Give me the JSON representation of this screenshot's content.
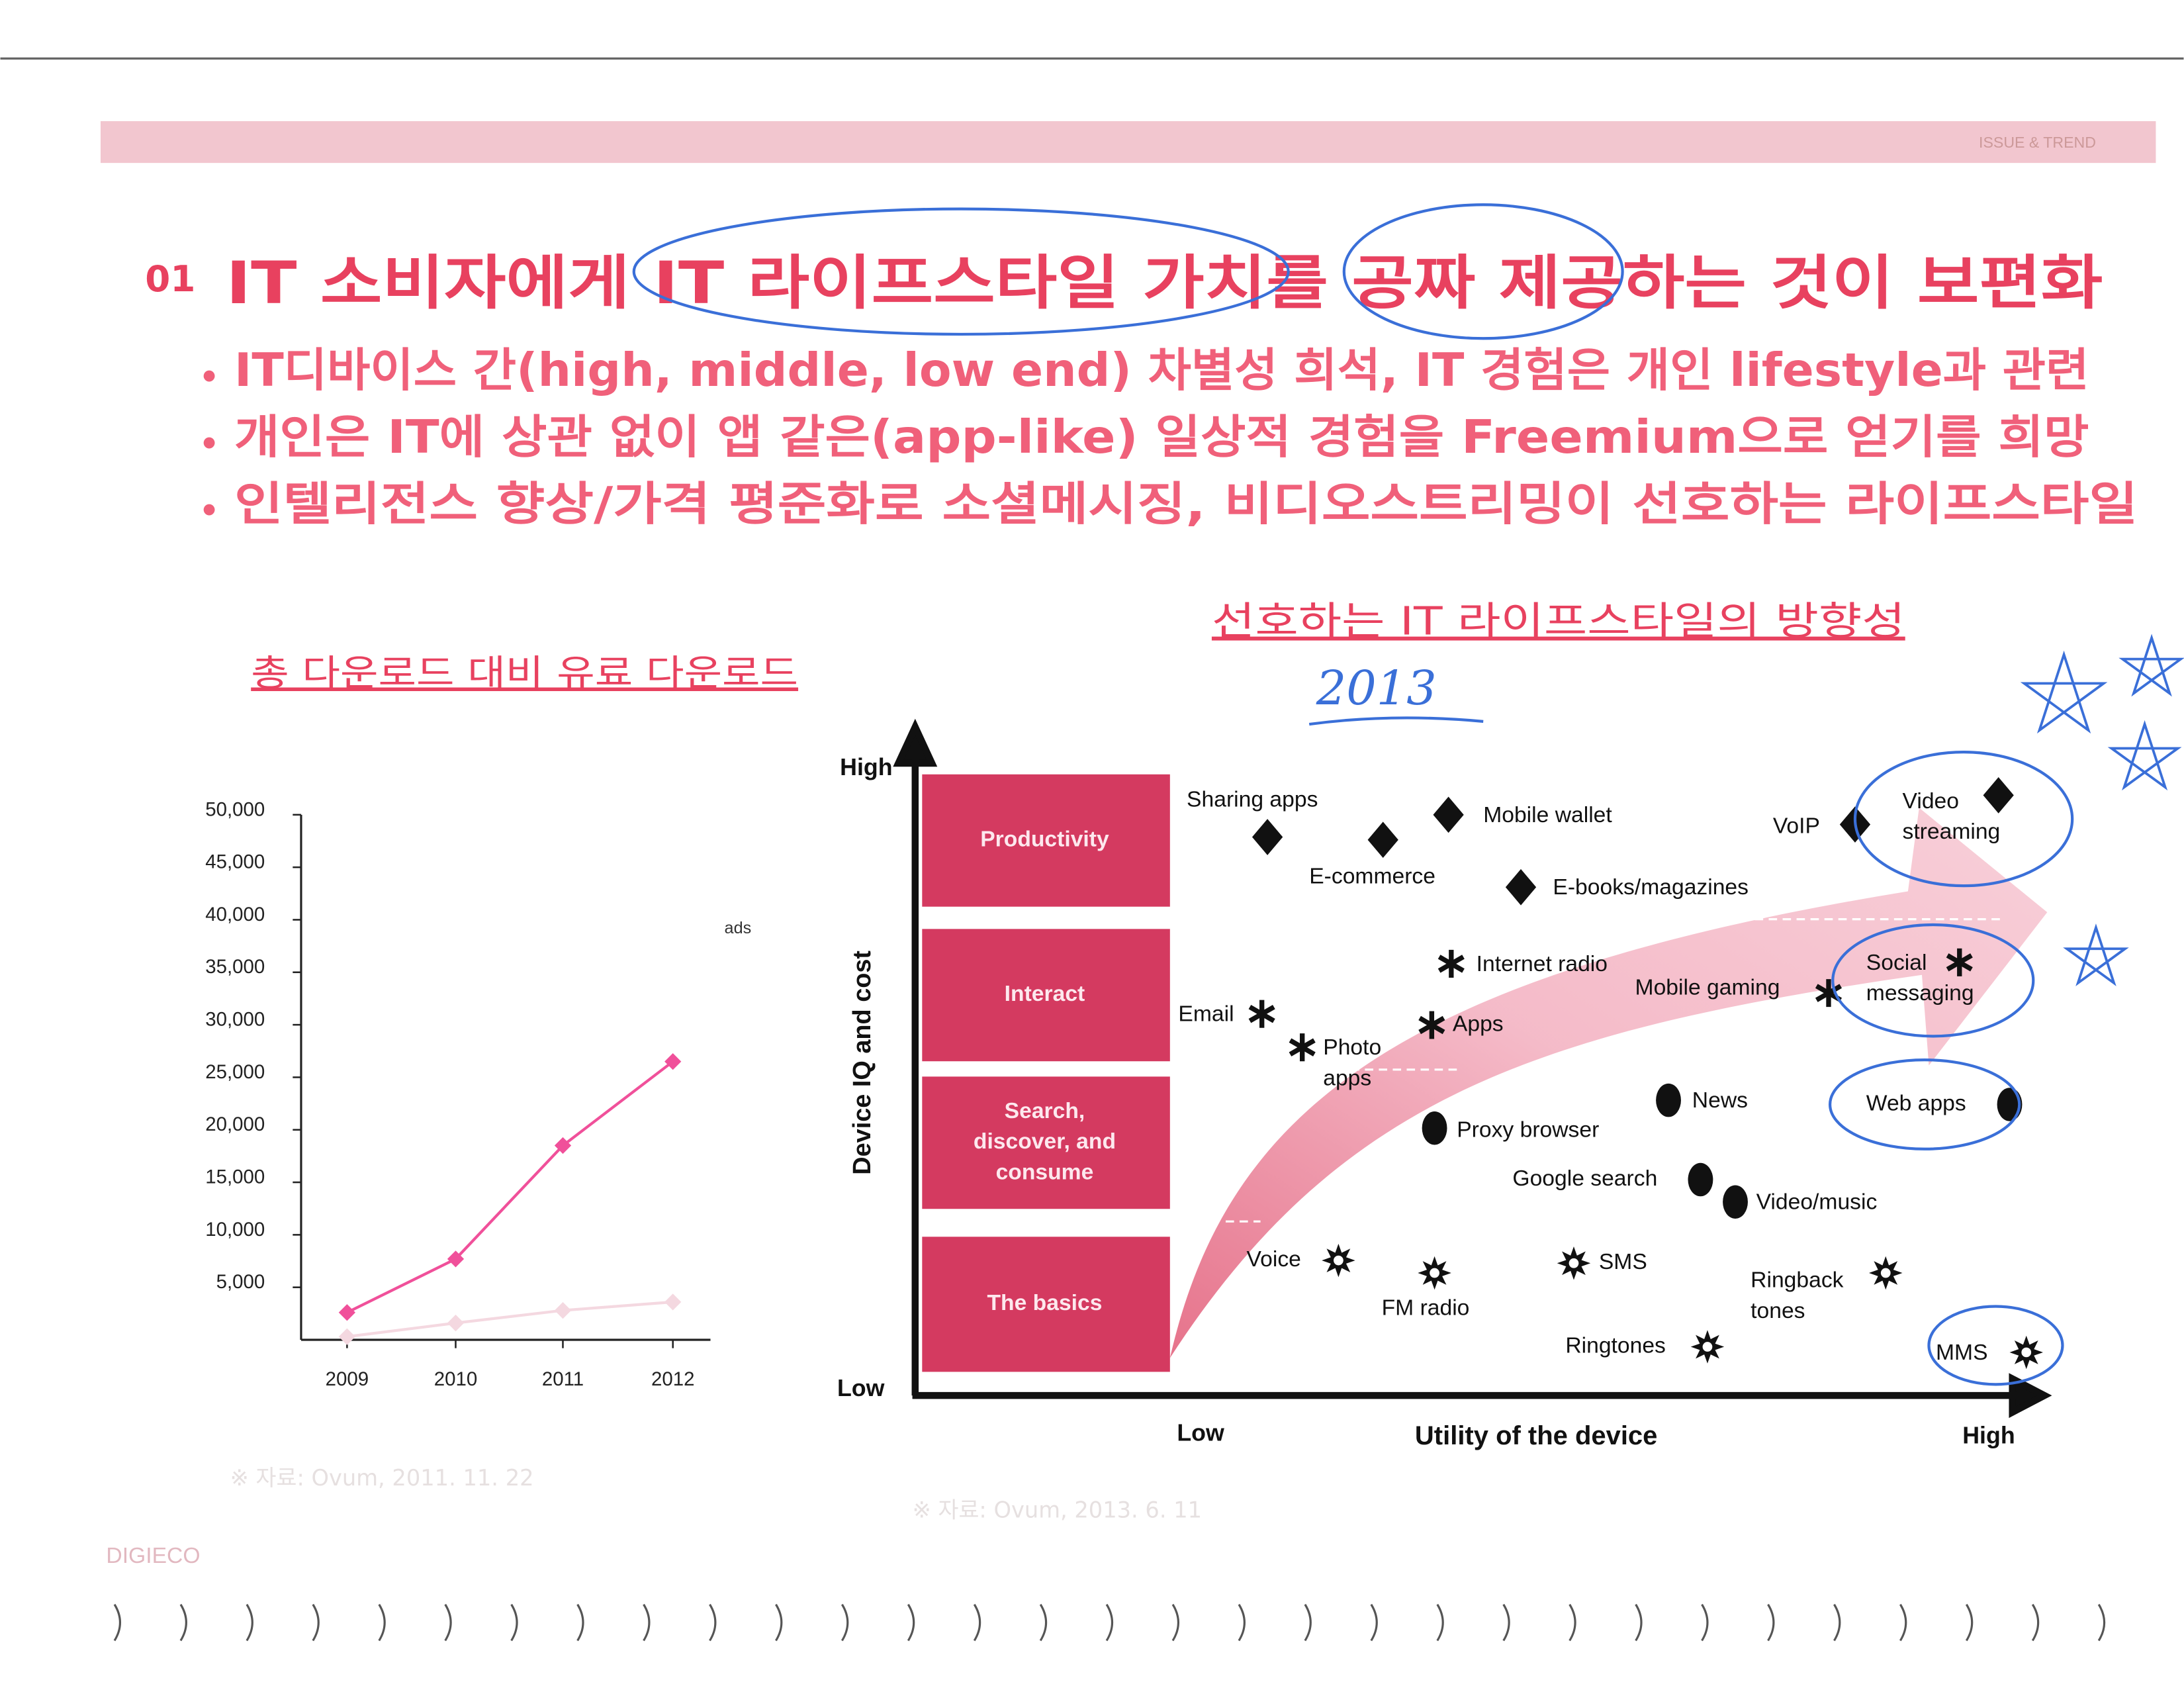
{
  "header": {
    "tag": "ISSUE & TREND"
  },
  "heading": {
    "number": "01",
    "title": "IT 소비자에게 IT 라이프스타일 가치를 공짜 제공하는 것이 보편화"
  },
  "bullets": [
    "IT디바이스 간(high, middle, low end) 차별성 희석, IT 경험은 개인 lifestyle과 관련",
    "개인은 IT에 상관 없이 앱 같은(app-like) 일상적 경험을 Freemium으로 얻기를 희망",
    "인텔리전스 향상/가격 평준화로 소셜메시징, 비디오스트리밍이 선호하는 라이프스타일"
  ],
  "chart_data": {
    "type": "line",
    "title": "총 다운로드 대비 유료 다운로드",
    "legend_fragment": "ads",
    "categories": [
      "2009",
      "2010",
      "2011",
      "2012"
    ],
    "series": [
      {
        "color": "#f0509a",
        "values": [
          2600,
          7700,
          18500,
          26500
        ]
      },
      {
        "color": "#f4d8e0",
        "values": [
          300,
          1600,
          2800,
          3600
        ]
      }
    ],
    "ylim": [
      0,
      50000
    ],
    "yticks": [
      {
        "value": 5000,
        "label": "5,000"
      },
      {
        "value": 10000,
        "label": "10,000"
      },
      {
        "value": 15000,
        "label": "15,000"
      },
      {
        "value": 20000,
        "label": "20,000"
      },
      {
        "value": 25000,
        "label": "25,000"
      },
      {
        "value": 30000,
        "label": "30,000"
      },
      {
        "value": 35000,
        "label": "35,000"
      },
      {
        "value": 40000,
        "label": "40,000"
      },
      {
        "value": 45000,
        "label": "45,000"
      },
      {
        "value": 50000,
        "label": "50,000"
      }
    ],
    "source": "※ 자료: Ovum, 2011. 11. 22"
  },
  "diagram": {
    "title": "선호하는 IT 라이프스타일의 방향성",
    "handwritten_year": "2013",
    "y_axis": {
      "label": "Device IQ and cost",
      "high": "High",
      "low": "Low"
    },
    "x_axis": {
      "label": "Utility of the device",
      "low": "Low",
      "high": "High"
    },
    "levels": [
      [
        "Productivity"
      ],
      [
        "Interact"
      ],
      [
        "Search,",
        "discover, and",
        "consume"
      ],
      [
        "The basics"
      ]
    ],
    "items": [
      {
        "label": [
          "Sharing apps"
        ],
        "marker": "diamond"
      },
      {
        "label": [
          "E-commerce"
        ],
        "marker": "diamond"
      },
      {
        "label": [
          "Mobile wallet"
        ],
        "marker": "diamond"
      },
      {
        "label": [
          "E-books/magazines"
        ],
        "marker": "diamond"
      },
      {
        "label": [
          "VoIP"
        ],
        "marker": "diamond"
      },
      {
        "label": [
          "Video",
          "streaming"
        ],
        "marker": "diamond"
      },
      {
        "label": [
          "Email"
        ],
        "marker": "asterisk"
      },
      {
        "label": [
          "Photo",
          "apps"
        ],
        "marker": "asterisk"
      },
      {
        "label": [
          "Internet radio"
        ],
        "marker": "asterisk"
      },
      {
        "label": [
          "Apps"
        ],
        "marker": "asterisk"
      },
      {
        "label": [
          "Mobile gaming"
        ],
        "marker": "asterisk"
      },
      {
        "label": [
          "Social",
          "messaging"
        ],
        "marker": "asterisk"
      },
      {
        "label": [
          "News"
        ],
        "marker": "dot"
      },
      {
        "label": [
          "Proxy browser"
        ],
        "marker": "dot"
      },
      {
        "label": [
          "Google search"
        ],
        "marker": "dot"
      },
      {
        "label": [
          "Video/music"
        ],
        "marker": "dot"
      },
      {
        "label": [
          "Web apps"
        ],
        "marker": "dot"
      },
      {
        "label": [
          "Voice"
        ],
        "marker": "sun"
      },
      {
        "label": [
          "FM radio"
        ],
        "marker": "sun"
      },
      {
        "label": [
          "SMS"
        ],
        "marker": "sun"
      },
      {
        "label": [
          "Ringback",
          "tones"
        ],
        "marker": "sun"
      },
      {
        "label": [
          "Ringtones"
        ],
        "marker": "sun"
      },
      {
        "label": [
          "MMS"
        ],
        "marker": "sun"
      }
    ],
    "source": "※ 자료: Ovum, 2013. 6. 11"
  },
  "footer": {
    "brand": "DIGIECO"
  }
}
